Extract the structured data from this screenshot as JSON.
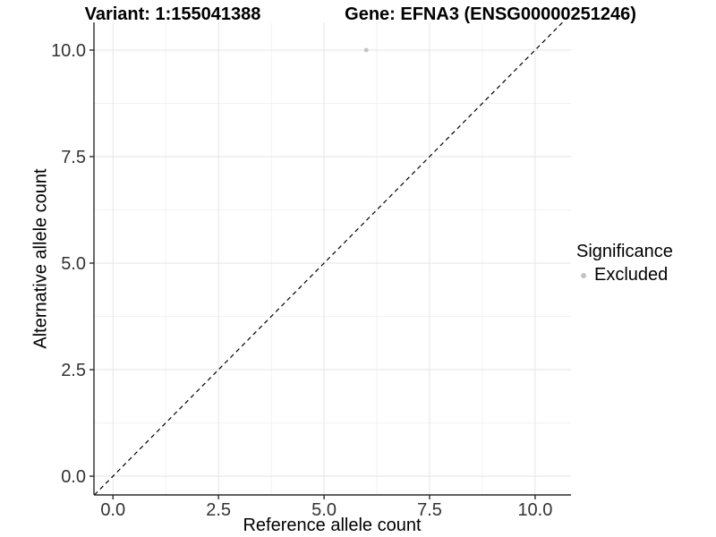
{
  "chart_data": {
    "type": "scatter",
    "title_left": "Variant: 1:155041388",
    "title_right": "Gene: EFNA3 (ENSG00000251246)",
    "xlabel": "Reference allele count",
    "ylabel": "Alternative allele count",
    "x_ticks": [
      0.0,
      2.5,
      5.0,
      7.5,
      10.0
    ],
    "y_ticks": [
      0.0,
      2.5,
      5.0,
      7.5,
      10.0
    ],
    "x_tick_labels": [
      "0.0",
      "2.5",
      "5.0",
      "7.5",
      "10.0"
    ],
    "y_tick_labels": [
      "0.0",
      "2.5",
      "5.0",
      "7.5",
      "10.0"
    ],
    "x_minor_ticks": [
      1.25,
      3.75,
      6.25,
      8.75
    ],
    "y_minor_ticks": [
      1.25,
      3.75,
      6.25,
      8.75
    ],
    "xlim": [
      -0.45,
      10.85
    ],
    "ylim": [
      -0.44,
      10.65
    ],
    "grid": true,
    "identity_line": {
      "style": "dashed",
      "slope": 1,
      "intercept": 0
    },
    "series": [
      {
        "name": "Excluded",
        "color": "#c3c3c3",
        "point_radius": 2.4,
        "points": [
          {
            "x": 6,
            "y": 10
          }
        ]
      }
    ],
    "legend": {
      "title": "Significance",
      "position": "right",
      "entries": [
        {
          "label": "Excluded",
          "color": "#c3c3c3"
        }
      ]
    },
    "style": {
      "major_grid_color": "#e5e5e5",
      "minor_grid_color": "#f2f2f2",
      "axis_line_color": "#2b2b2b",
      "tick_label_color": "#333333",
      "identity_line_color": "#000000",
      "background": "#ffffff"
    }
  }
}
